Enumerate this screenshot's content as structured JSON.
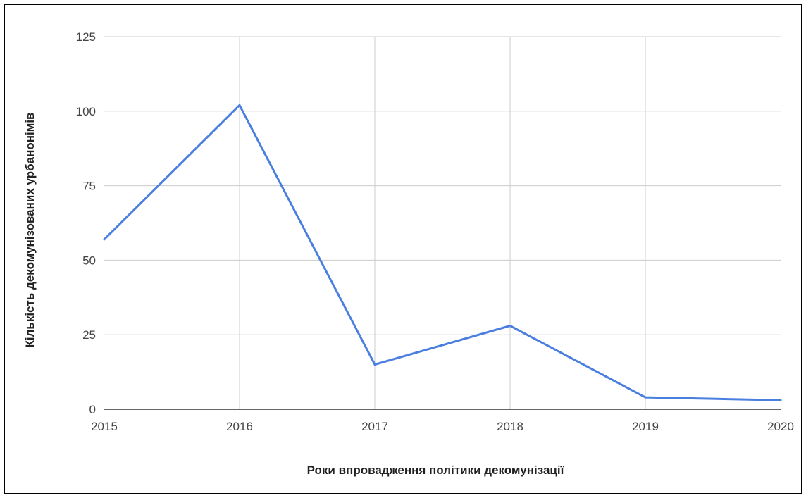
{
  "chart_data": {
    "type": "line",
    "title": "",
    "xlabel": "Роки впровадження політики декомунізації",
    "ylabel": "Кількість декомунізованих урбанонімів",
    "x": [
      "2015",
      "2016",
      "2017",
      "2018",
      "2019",
      "2020"
    ],
    "series": [
      {
        "values": [
          57,
          102,
          15,
          28,
          4,
          3
        ],
        "color": "#4a7fe0"
      }
    ],
    "ylim": [
      0,
      125
    ],
    "yticks": [
      "0",
      "25",
      "50",
      "75",
      "100",
      "125"
    ],
    "grid": true,
    "legend": "none"
  },
  "colors": {
    "gridline": "#cccccc",
    "baseline": "#333333"
  }
}
